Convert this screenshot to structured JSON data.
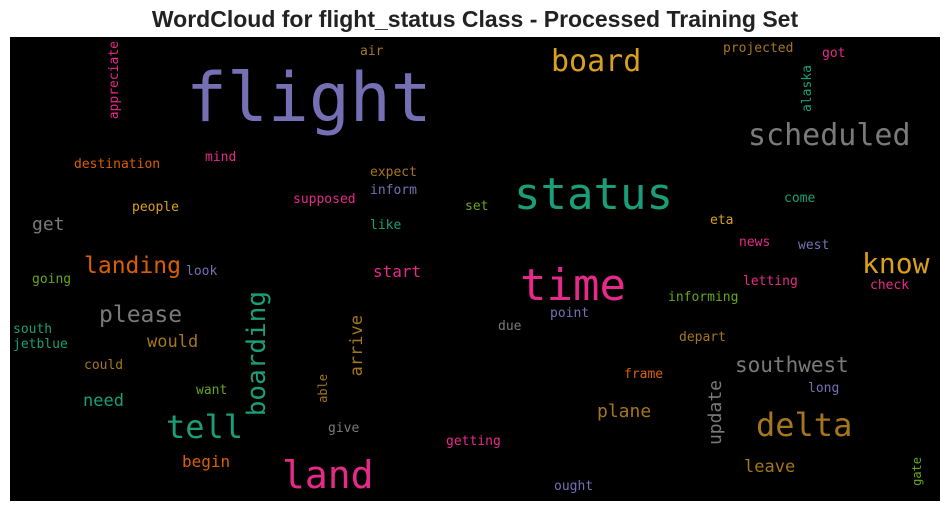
{
  "chart_data": {
    "type": "wordcloud",
    "title": "WordCloud for flight_status Class - Processed Training Set",
    "background": "#000000",
    "colors": {
      "purple": "#7570b3",
      "teal": "#1b9e77",
      "gold": "#d9a01d",
      "grey": "#7a7a7a",
      "pink": "#e7298a",
      "orange": "#d95f02",
      "olive": "#a6761d",
      "green": "#66a61e"
    },
    "words": [
      {
        "text": "flight",
        "color": "#7570b3",
        "weight": 1.0
      },
      {
        "text": "status",
        "color": "#1b9e77",
        "weight": 0.65
      },
      {
        "text": "time",
        "color": "#e7298a",
        "weight": 0.65
      },
      {
        "text": "land",
        "color": "#e7298a",
        "weight": 0.55
      },
      {
        "text": "board",
        "color": "#d9a01d",
        "weight": 0.5
      },
      {
        "text": "scheduled",
        "color": "#7a7a7a",
        "weight": 0.5
      },
      {
        "text": "delta",
        "color": "#a6761d",
        "weight": 0.55
      },
      {
        "text": "tell",
        "color": "#1b9e77",
        "weight": 0.5
      },
      {
        "text": "boarding",
        "color": "#1b9e77",
        "weight": 0.45
      },
      {
        "text": "know",
        "color": "#d9a01d",
        "weight": 0.45
      },
      {
        "text": "landing",
        "color": "#d95f02",
        "weight": 0.38
      },
      {
        "text": "please",
        "color": "#7a7a7a",
        "weight": 0.38
      },
      {
        "text": "southwest",
        "color": "#7a7a7a",
        "weight": 0.36
      },
      {
        "text": "update",
        "color": "#7a7a7a",
        "weight": 0.3
      },
      {
        "text": "arrive",
        "color": "#a6761d",
        "weight": 0.3
      },
      {
        "text": "plane",
        "color": "#a6761d",
        "weight": 0.3
      },
      {
        "text": "would",
        "color": "#a6761d",
        "weight": 0.28
      },
      {
        "text": "need",
        "color": "#1b9e77",
        "weight": 0.28
      },
      {
        "text": "begin",
        "color": "#d95f02",
        "weight": 0.26
      },
      {
        "text": "leave",
        "color": "#a6761d",
        "weight": 0.28
      },
      {
        "text": "get",
        "color": "#7a7a7a",
        "weight": 0.28
      },
      {
        "text": "start",
        "color": "#e7298a",
        "weight": 0.26
      },
      {
        "text": "appreciate",
        "color": "#e7298a",
        "weight": 0.2
      },
      {
        "text": "air",
        "color": "#a6761d",
        "weight": 0.2
      },
      {
        "text": "projected",
        "color": "#a6761d",
        "weight": 0.2
      },
      {
        "text": "got",
        "color": "#e7298a",
        "weight": 0.2
      },
      {
        "text": "alaska",
        "color": "#1b9e77",
        "weight": 0.2
      },
      {
        "text": "destination",
        "color": "#d95f02",
        "weight": 0.2
      },
      {
        "text": "mind",
        "color": "#e7298a",
        "weight": 0.2
      },
      {
        "text": "expect",
        "color": "#a6761d",
        "weight": 0.2
      },
      {
        "text": "inform",
        "color": "#7570b3",
        "weight": 0.2
      },
      {
        "text": "supposed",
        "color": "#e7298a",
        "weight": 0.2
      },
      {
        "text": "people",
        "color": "#d9a01d",
        "weight": 0.2
      },
      {
        "text": "set",
        "color": "#66a61e",
        "weight": 0.2
      },
      {
        "text": "come",
        "color": "#1b9e77",
        "weight": 0.2
      },
      {
        "text": "like",
        "color": "#1b9e77",
        "weight": 0.2
      },
      {
        "text": "eta",
        "color": "#d9a01d",
        "weight": 0.2
      },
      {
        "text": "news",
        "color": "#e7298a",
        "weight": 0.2
      },
      {
        "text": "west",
        "color": "#7570b3",
        "weight": 0.2
      },
      {
        "text": "going",
        "color": "#66a61e",
        "weight": 0.2
      },
      {
        "text": "look",
        "color": "#7570b3",
        "weight": 0.2
      },
      {
        "text": "letting",
        "color": "#e7298a",
        "weight": 0.2
      },
      {
        "text": "check",
        "color": "#e7298a",
        "weight": 0.2
      },
      {
        "text": "informing",
        "color": "#66a61e",
        "weight": 0.2
      },
      {
        "text": "south",
        "color": "#1b9e77",
        "weight": 0.2
      },
      {
        "text": "jetblue",
        "color": "#1b9e77",
        "weight": 0.2
      },
      {
        "text": "point",
        "color": "#7570b3",
        "weight": 0.2
      },
      {
        "text": "due",
        "color": "#7a7a7a",
        "weight": 0.2
      },
      {
        "text": "depart",
        "color": "#a6761d",
        "weight": 0.2
      },
      {
        "text": "could",
        "color": "#a6761d",
        "weight": 0.2
      },
      {
        "text": "want",
        "color": "#66a61e",
        "weight": 0.2
      },
      {
        "text": "frame",
        "color": "#d95f02",
        "weight": 0.2
      },
      {
        "text": "long",
        "color": "#7570b3",
        "weight": 0.2
      },
      {
        "text": "able",
        "color": "#a6761d",
        "weight": 0.18
      },
      {
        "text": "give",
        "color": "#7a7a7a",
        "weight": 0.2
      },
      {
        "text": "getting",
        "color": "#e7298a",
        "weight": 0.2
      },
      {
        "text": "ought",
        "color": "#7570b3",
        "weight": 0.2
      },
      {
        "text": "gate",
        "color": "#66a61e",
        "weight": 0.18
      }
    ]
  }
}
